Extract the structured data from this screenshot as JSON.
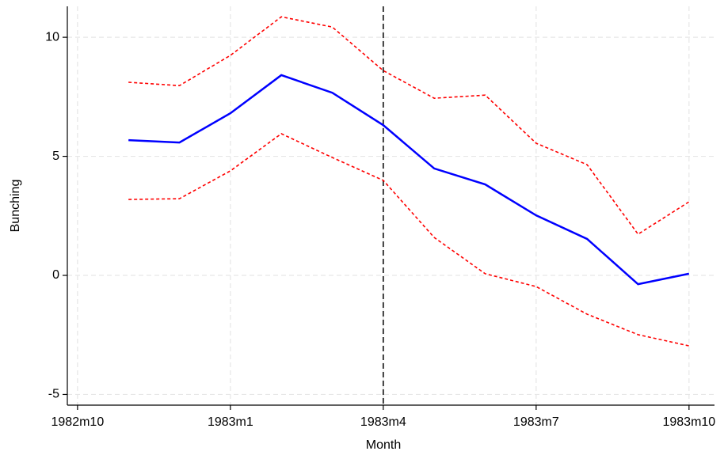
{
  "chart_data": {
    "type": "line",
    "x_label": "Month",
    "y_label": "Bunching",
    "x": [
      274,
      275,
      276,
      277,
      278,
      279,
      280,
      281,
      282,
      283,
      284,
      285
    ],
    "series": [
      {
        "color": "#ff0000",
        "dash": "dotted",
        "values": [
          8.11,
          7.97,
          9.24,
          10.86,
          10.43,
          8.6,
          7.44,
          7.57,
          5.55,
          4.65,
          1.73,
          3.09
        ]
      },
      {
        "color": "#0000ff",
        "dash": "solid",
        "values": [
          5.68,
          5.58,
          6.81,
          8.41,
          7.67,
          6.31,
          4.49,
          3.82,
          2.52,
          1.53,
          -0.37,
          0.07
        ]
      },
      {
        "color": "#ff0000",
        "dash": "dotted",
        "values": [
          3.19,
          3.22,
          4.39,
          5.95,
          4.95,
          3.99,
          1.59,
          0.07,
          -0.47,
          -1.63,
          -2.49,
          -2.96
        ]
      }
    ],
    "vline": 279,
    "xlim": [
      272.8,
      285.5
    ],
    "xticks": [
      {
        "value": 273,
        "label": "1982m10"
      },
      {
        "value": 276,
        "label": "1983m1"
      },
      {
        "value": 279,
        "label": "1983m4"
      },
      {
        "value": 282,
        "label": "1983m7"
      },
      {
        "value": 285,
        "label": "1983m10"
      }
    ],
    "ylim": [
      -5.45,
      11.3
    ],
    "yticks": [
      -5,
      0,
      5,
      10
    ],
    "grid": true
  }
}
